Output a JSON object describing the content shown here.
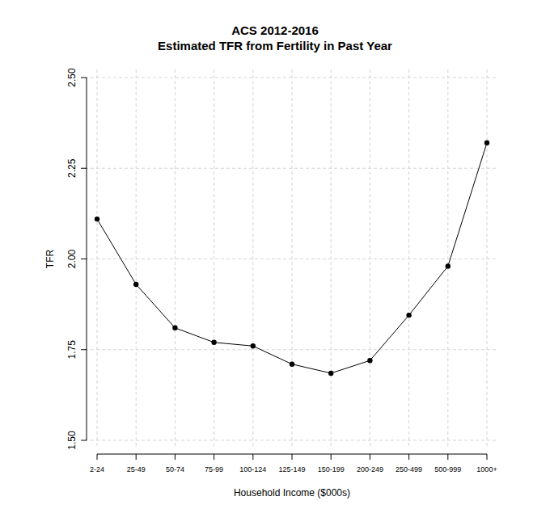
{
  "chart_data": {
    "type": "line",
    "title": "ACS 2012-2016",
    "subtitle": "Estimated TFR from Fertility in Past Year",
    "x_label": "Household Income ($000s)",
    "y_label": "TFR",
    "categories": [
      "2-24",
      "25-49",
      "50-74",
      "75-99",
      "100-124",
      "125-149",
      "150-199",
      "200-249",
      "250-499",
      "500-999",
      "1000+"
    ],
    "values": [
      2.11,
      1.93,
      1.81,
      1.77,
      1.76,
      1.71,
      1.685,
      1.72,
      1.845,
      1.98,
      2.32
    ],
    "color": "#000000",
    "marker": "circle",
    "line_style": "solid",
    "ylim": [
      1.5,
      2.5
    ],
    "yticks": [
      {
        "value": 1.5,
        "label": "1.50"
      },
      {
        "value": 1.75,
        "label": "1.75"
      },
      {
        "value": 2,
        "label": "2.00"
      },
      {
        "value": 2.25,
        "label": "2.25"
      },
      {
        "value": 2.5,
        "label": "2.50"
      }
    ],
    "grid": true
  }
}
